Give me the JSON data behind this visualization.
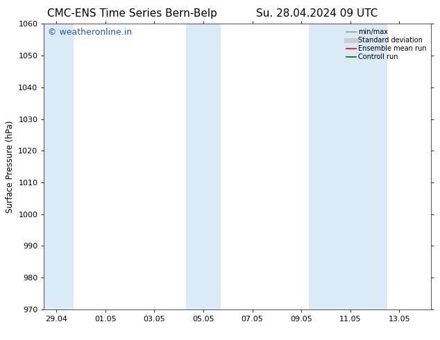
{
  "title_left": "CMC-ENS Time Series Bern-Belp",
  "title_right": "Su. 28.04.2024 09 UTC",
  "ylabel": "Surface Pressure (hPa)",
  "ylim": [
    970,
    1060
  ],
  "yticks": [
    970,
    980,
    990,
    1000,
    1010,
    1020,
    1030,
    1040,
    1050,
    1060
  ],
  "xtick_labels": [
    "29.04",
    "01.05",
    "03.05",
    "05.05",
    "07.05",
    "09.05",
    "11.05",
    "13.05"
  ],
  "xtick_positions": [
    0,
    2,
    4,
    6,
    8,
    10,
    12,
    14
  ],
  "xlim": [
    -0.5,
    15.3
  ],
  "shaded_bands": [
    {
      "x_start": -0.5,
      "x_end": 0.7,
      "color": "#daeaf7"
    },
    {
      "x_start": 5.3,
      "x_end": 6.7,
      "color": "#daeaf7"
    },
    {
      "x_start": 10.3,
      "x_end": 13.5,
      "color": "#daeaf7"
    }
  ],
  "watermark_text": "© weatheronline.in",
  "watermark_color": "#1a5eb8",
  "watermark_fontsize": 9,
  "background_color": "#ffffff",
  "legend_items": [
    {
      "label": "min/max",
      "color": "#999999",
      "lw": 1.2,
      "style": "solid"
    },
    {
      "label": "Standard deviation",
      "color": "#cccccc",
      "lw": 5,
      "style": "solid"
    },
    {
      "label": "Ensemble mean run",
      "color": "#ff0000",
      "lw": 1.2,
      "style": "solid"
    },
    {
      "label": "Controll run",
      "color": "#006400",
      "lw": 1.2,
      "style": "solid"
    }
  ],
  "title_fontsize": 11,
  "axis_label_fontsize": 8.5,
  "tick_fontsize": 8
}
